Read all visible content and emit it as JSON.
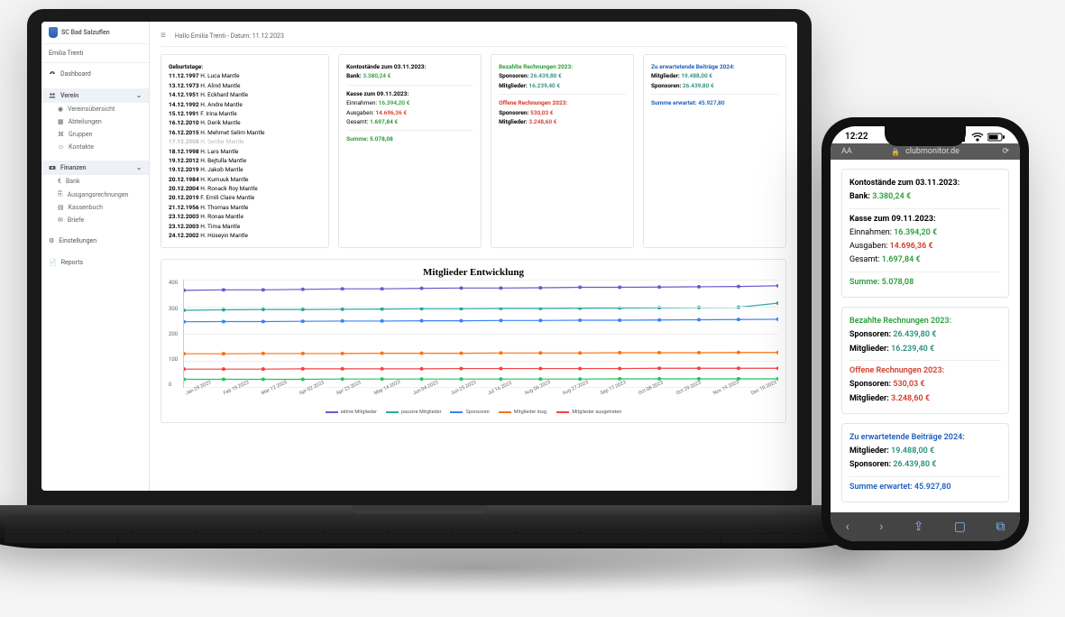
{
  "app": {
    "name": "SC Bad Salzuflen"
  },
  "user": {
    "name": "Emilia Trenti"
  },
  "sidebar": {
    "dashboard": "Dashboard",
    "verein": {
      "label": "Verein",
      "items": [
        "Vereinsübersicht",
        "Abteilungen",
        "Gruppen",
        "Kontakte"
      ]
    },
    "finanzen": {
      "label": "Finanzen",
      "items": [
        "Bank",
        "Ausgangsrechnungen",
        "Kassenbuch",
        "Briefe"
      ]
    },
    "einstellungen": "Einstellungen",
    "reports": "Reports"
  },
  "greeting": "Hallo Emilia Trenti - Datum: 11.12.2023",
  "birthdays": {
    "title": "Geburtstage:",
    "rows": [
      "11.12.1997 H. Luca Mantle",
      "13.12.1973 H. Alind Mantle",
      "14.12.1951 H. Eckhard Mantle",
      "14.12.1992 H. Andre Mantle",
      "15.12.1991 F. Irina Mantle",
      "16.12.2010 H. Derik Mantle",
      "16.12.2015 H. Mehmet Selim Mantle",
      "17.12.2008 H. Serdar Mantle",
      "18.12.1998 H. Lars Mantle",
      "19.12.2012 H. Bejtulla Mantle",
      "19.12.2019 H. Jakob Mantle",
      "20.12.1984 H. Kumuuk Mantle",
      "20.12.2004 H. Ronack Roy Mantle",
      "20.12.2019 F. Emili Claire Mantle",
      "21.12.1956 H. Thomas Mantle",
      "23.12.2003 H. Ronas Mantle",
      "23.12.2003 H. Tima Mantle",
      "24.12.2002 H. Hüseyin Mantle"
    ]
  },
  "balances": {
    "title": "Kontostände zum 03.11.2023:",
    "bank_label": "Bank:",
    "bank_value": "3.380,24 €",
    "cash_title": "Kasse zum 09.11.2023:",
    "income_label": "Einnahmen:",
    "income_value": "16.394,20 €",
    "expense_label": "Ausgaben:",
    "expense_value": "14.696,36 €",
    "total_label": "Gesamt:",
    "total_value": "1.697,84 €",
    "sum_label": "Summe:",
    "sum_value": "5.078,08"
  },
  "paid": {
    "title": "Bezahlte Rechnungen 2023:",
    "sponsors_label": "Sponsoren:",
    "sponsors_value": "26.439,80 €",
    "members_label": "Mitglieder:",
    "members_value": "16.239,40 €",
    "open_title": "Offene Rechnungen 2023:",
    "open_sponsors_label": "Sponsoren:",
    "open_sponsors_value": "530,03 €",
    "open_members_label": "Mitglieder:",
    "open_members_value": "3.248,60 €"
  },
  "expected": {
    "title": "Zu erwartetende Beiträge 2024:",
    "members_label": "Mitglieder:",
    "members_value": "19.488,00 €",
    "sponsors_label": "Sponsoren:",
    "sponsors_value": "26.439,80 €",
    "sum_label": "Summe erwartet:",
    "sum_value": "45.927,80"
  },
  "chart": {
    "type": "line",
    "title": "Mitglieder Entwicklung",
    "y_ticks": [
      "400",
      "300",
      "200",
      "100",
      "0"
    ],
    "ylim": [
      0,
      420
    ],
    "x_labels": [
      "Jan 29 2023",
      "Feb 19 2023",
      "Mar 12 2023",
      "Apr 02 2023",
      "Apr 23 2023",
      "May 14 2023",
      "Jun 04 2023",
      "Jun 25 2023",
      "Jul 16 2023",
      "Aug 06 2023",
      "Aug 27 2023",
      "Sep 17 2023",
      "Oct 08 2023",
      "Oct 29 2023",
      "Nov 19 2023",
      "Dec 10 2023"
    ],
    "series": [
      {
        "name": "aktive Mitglieder",
        "color": "#6a5acd",
        "values": [
          378,
          380,
          380,
          382,
          384,
          384,
          386,
          387,
          387,
          388,
          390,
          390,
          391,
          392,
          393,
          396
        ]
      },
      {
        "name": "passive Mitglieder",
        "color": "#2aa8a0",
        "values": [
          300,
          302,
          303,
          303,
          304,
          305,
          306,
          306,
          307,
          307,
          308,
          309,
          310,
          311,
          312,
          328
        ]
      },
      {
        "name": "Sponsoren",
        "color": "#3b82f6",
        "values": [
          255,
          256,
          256,
          257,
          258,
          258,
          259,
          259,
          260,
          260,
          261,
          261,
          262,
          263,
          264,
          265
        ]
      },
      {
        "name": "Mitglieder insg.",
        "color": "#f97316",
        "values": [
          130,
          130,
          131,
          131,
          131,
          132,
          132,
          132,
          133,
          133,
          133,
          134,
          134,
          134,
          135,
          135
        ]
      },
      {
        "name": "Mitglieder ausgetreten",
        "color": "#ef4444",
        "values": [
          70,
          70,
          70,
          71,
          71,
          71,
          71,
          72,
          72,
          72,
          72,
          72,
          73,
          73,
          73,
          73
        ]
      },
      {
        "name": "-",
        "color": "#22c55e",
        "values": [
          30,
          30,
          30,
          30,
          31,
          31,
          31,
          31,
          31,
          31,
          31,
          32,
          32,
          32,
          32,
          32
        ]
      }
    ],
    "grid_color": "#f0f0f0",
    "line_width": 1.2,
    "marker": "circle",
    "marker_size": 2,
    "background_color": "#ffffff",
    "fontsize_title": 11,
    "fontsize_axis": 6
  },
  "phone": {
    "time": "12:22",
    "url_label": "clubmonitor.de",
    "aa": "AA"
  }
}
